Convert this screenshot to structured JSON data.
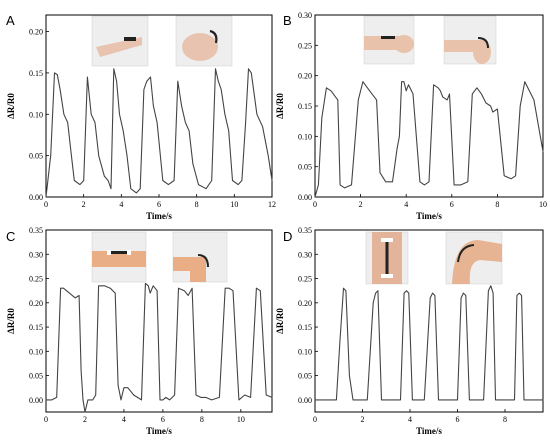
{
  "figure": {
    "panels": [
      "A",
      "B",
      "C",
      "D"
    ]
  },
  "chart_data": [
    {
      "panel": "A",
      "type": "line",
      "xlabel": "Time/s",
      "ylabel": "ΔR/R0",
      "xlim": [
        0,
        12
      ],
      "ylim": [
        0,
        0.22
      ],
      "xticks": [
        0,
        2,
        4,
        6,
        8,
        10,
        12
      ],
      "yticks": [
        0.0,
        0.05,
        0.1,
        0.15,
        0.2
      ],
      "series": [
        {
          "x": [
            0,
            0.25,
            0.45,
            0.6,
            0.75,
            0.95,
            1.15,
            1.35,
            1.5,
            1.8,
            2.0,
            2.2,
            2.4,
            2.6,
            2.8,
            3.1,
            3.3,
            3.45,
            3.6,
            3.75,
            3.9,
            4.1,
            4.3,
            4.5,
            4.8,
            5.0,
            5.2,
            5.35,
            5.55,
            5.7,
            5.9,
            6.2,
            6.5,
            6.8,
            7.0,
            7.2,
            7.4,
            7.6,
            7.8,
            8.1,
            8.5,
            8.8,
            9.0,
            9.15,
            9.3,
            9.5,
            9.7,
            9.9,
            10.2,
            10.4,
            10.6,
            10.75,
            10.9,
            11.2,
            11.5,
            11.8,
            12.0
          ],
          "y": [
            0.0,
            0.05,
            0.15,
            0.148,
            0.13,
            0.1,
            0.09,
            0.05,
            0.02,
            0.015,
            0.02,
            0.145,
            0.1,
            0.09,
            0.05,
            0.025,
            0.02,
            0.01,
            0.155,
            0.14,
            0.1,
            0.08,
            0.05,
            0.01,
            0.005,
            0.01,
            0.13,
            0.14,
            0.145,
            0.11,
            0.09,
            0.02,
            0.015,
            0.02,
            0.14,
            0.11,
            0.09,
            0.08,
            0.04,
            0.015,
            0.01,
            0.02,
            0.155,
            0.14,
            0.13,
            0.1,
            0.08,
            0.02,
            0.015,
            0.02,
            0.09,
            0.155,
            0.15,
            0.1,
            0.085,
            0.05,
            0.02
          ]
        }
      ]
    },
    {
      "panel": "B",
      "type": "line",
      "xlabel": "Time/s",
      "ylabel": "ΔR/R0",
      "xlim": [
        0,
        10
      ],
      "ylim": [
        0,
        0.3
      ],
      "xticks": [
        0,
        2,
        4,
        6,
        8,
        10
      ],
      "yticks": [
        0.0,
        0.05,
        0.1,
        0.15,
        0.2,
        0.25,
        0.3
      ],
      "series": [
        {
          "x": [
            0,
            0.15,
            0.3,
            0.5,
            0.7,
            0.9,
            1.0,
            1.1,
            1.3,
            1.6,
            1.9,
            2.1,
            2.3,
            2.5,
            2.7,
            2.85,
            3.1,
            3.4,
            3.6,
            3.7,
            3.8,
            3.9,
            4.0,
            4.1,
            4.3,
            4.6,
            4.8,
            5.0,
            5.2,
            5.4,
            5.5,
            5.6,
            5.8,
            5.9,
            6.1,
            6.4,
            6.7,
            6.9,
            7.1,
            7.3,
            7.5,
            7.7,
            7.8,
            8.0,
            8.3,
            8.6,
            8.8,
            9.0,
            9.2,
            9.6,
            10.0
          ],
          "y": [
            0.0,
            0.02,
            0.13,
            0.18,
            0.175,
            0.165,
            0.16,
            0.02,
            0.015,
            0.02,
            0.16,
            0.19,
            0.18,
            0.17,
            0.16,
            0.04,
            0.025,
            0.025,
            0.08,
            0.1,
            0.19,
            0.19,
            0.175,
            0.185,
            0.17,
            0.025,
            0.02,
            0.025,
            0.185,
            0.18,
            0.175,
            0.165,
            0.16,
            0.17,
            0.02,
            0.02,
            0.025,
            0.17,
            0.18,
            0.17,
            0.155,
            0.15,
            0.14,
            0.145,
            0.035,
            0.03,
            0.035,
            0.15,
            0.19,
            0.16,
            0.075
          ]
        }
      ]
    },
    {
      "panel": "C",
      "type": "line",
      "xlabel": "Time/s",
      "ylabel": "ΔR/R0",
      "xlim": [
        0,
        11.6
      ],
      "ylim": [
        -0.025,
        0.35
      ],
      "xticks": [
        0,
        2,
        4,
        6,
        8,
        10
      ],
      "yticks": [
        0.0,
        0.05,
        0.1,
        0.15,
        0.2,
        0.25,
        0.3,
        0.35
      ],
      "series": [
        {
          "x": [
            0,
            0.3,
            0.55,
            0.75,
            0.9,
            1.05,
            1.2,
            1.5,
            1.7,
            1.8,
            1.9,
            2.0,
            2.15,
            2.4,
            2.55,
            2.7,
            3.0,
            3.3,
            3.55,
            3.7,
            3.85,
            4.0,
            4.2,
            4.5,
            4.9,
            5.1,
            5.25,
            5.35,
            5.5,
            5.7,
            5.85,
            6.0,
            6.15,
            6.35,
            6.6,
            6.8,
            7.1,
            7.3,
            7.5,
            7.7,
            7.95,
            8.2,
            8.5,
            8.9,
            9.2,
            9.4,
            9.6,
            9.9,
            10.2,
            10.5,
            10.8,
            11.0,
            11.3,
            11.6
          ],
          "y": [
            0.0,
            0.0,
            0.005,
            0.23,
            0.23,
            0.225,
            0.22,
            0.21,
            0.215,
            0.06,
            0.0,
            -0.025,
            0.0,
            0.0,
            0.01,
            0.235,
            0.235,
            0.23,
            0.22,
            0.03,
            0.0,
            0.025,
            0.025,
            0.01,
            0.0,
            0.24,
            0.235,
            0.22,
            0.235,
            0.225,
            0.0,
            0.0,
            0.005,
            0.0,
            0.01,
            0.23,
            0.225,
            0.215,
            0.23,
            0.01,
            0.005,
            0.005,
            0.0,
            0.005,
            0.23,
            0.23,
            0.225,
            0.0,
            0.01,
            0.005,
            0.23,
            0.225,
            0.01,
            0.005
          ]
        }
      ]
    },
    {
      "panel": "D",
      "type": "line",
      "xlabel": "Time/s",
      "ylabel": "ΔR/R0",
      "xlim": [
        0,
        9.6
      ],
      "ylim": [
        -0.025,
        0.35
      ],
      "xticks": [
        0,
        2,
        4,
        6,
        8
      ],
      "yticks": [
        0.0,
        0.05,
        0.1,
        0.15,
        0.2,
        0.25,
        0.3,
        0.35
      ],
      "series": [
        {
          "x": [
            0,
            0.5,
            0.9,
            1.05,
            1.2,
            1.3,
            1.45,
            1.6,
            1.9,
            2.2,
            2.45,
            2.55,
            2.65,
            2.8,
            3.0,
            3.3,
            3.6,
            3.75,
            3.85,
            3.95,
            4.1,
            4.3,
            4.6,
            4.85,
            4.95,
            5.05,
            5.2,
            5.4,
            5.7,
            6.0,
            6.15,
            6.25,
            6.35,
            6.5,
            6.8,
            7.1,
            7.3,
            7.4,
            7.5,
            7.6,
            7.8,
            8.1,
            8.4,
            8.5,
            8.6,
            8.7,
            8.8,
            9.1,
            9.6
          ],
          "y": [
            0.0,
            0.0,
            0.0,
            0.12,
            0.23,
            0.225,
            0.05,
            0.0,
            0.0,
            0.0,
            0.2,
            0.22,
            0.225,
            0.0,
            0.0,
            0.0,
            0.0,
            0.22,
            0.225,
            0.22,
            0.0,
            0.0,
            0.0,
            0.21,
            0.22,
            0.215,
            0.0,
            0.0,
            0.0,
            0.0,
            0.21,
            0.22,
            0.215,
            0.0,
            0.0,
            0.0,
            0.225,
            0.235,
            0.22,
            0.0,
            0.0,
            0.0,
            0.0,
            0.215,
            0.22,
            0.215,
            0.0,
            0.0,
            0.0
          ]
        }
      ]
    }
  ]
}
